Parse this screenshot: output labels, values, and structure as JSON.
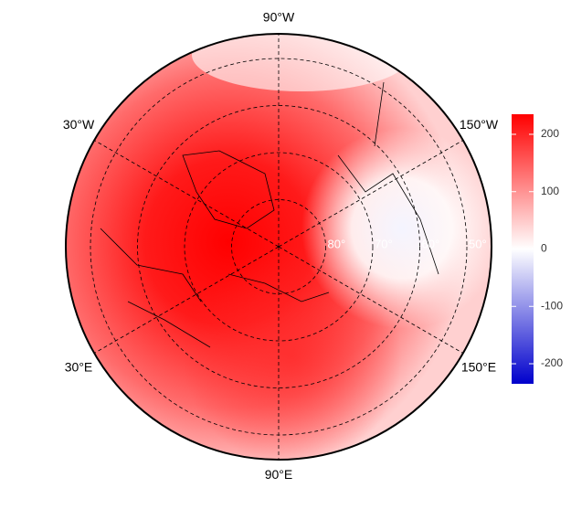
{
  "map": {
    "meridians": [
      {
        "value": -90,
        "label": "90°W"
      },
      {
        "value": -30,
        "label": "30°W"
      },
      {
        "value": -150,
        "label": "150°W"
      },
      {
        "value": 30,
        "label": "30°E"
      },
      {
        "value": 150,
        "label": "150°E"
      },
      {
        "value": 90,
        "label": "90°E"
      }
    ],
    "parallels": [
      {
        "value": 80,
        "label": "80°"
      },
      {
        "value": 70,
        "label": "70°"
      },
      {
        "value": 60,
        "label": "60°"
      },
      {
        "value": 50,
        "label": "50°"
      }
    ]
  },
  "colorbar": {
    "lim": [
      -235,
      235
    ],
    "ticks": [
      200,
      100,
      0,
      -100,
      -200
    ],
    "colors": [
      "#0000cc",
      "#ffffff",
      "#ff0000"
    ]
  }
}
